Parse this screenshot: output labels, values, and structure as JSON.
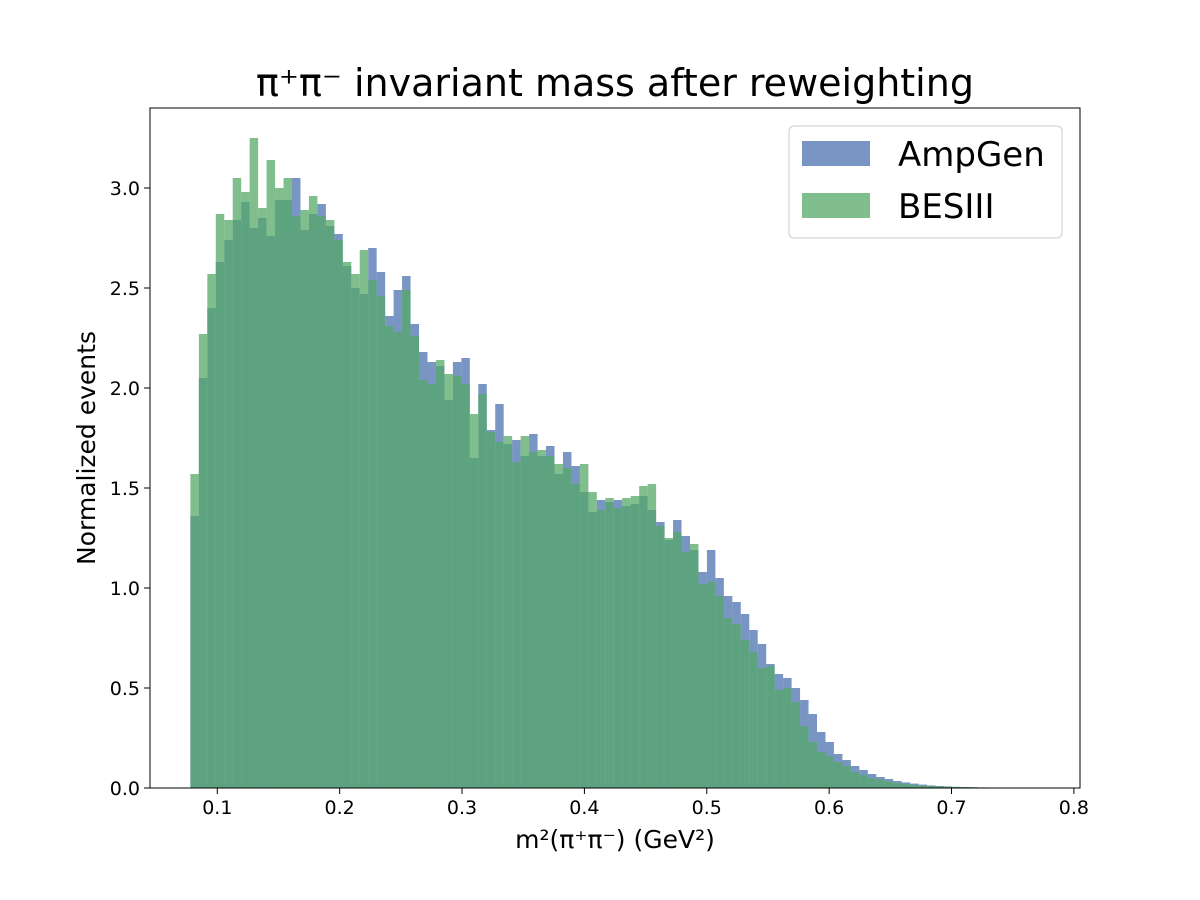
{
  "colors": {
    "AmpGen": "#4c72b0",
    "BESIII": "#55a868"
  },
  "chart_data": {
    "type": "histogram",
    "title": "π⁺π⁻ invariant mass after reweighting",
    "xlabel": "m²(π⁺π⁻) (GeV²)",
    "ylabel": "Normalized events",
    "xlim": [
      0.045,
      0.805
    ],
    "ylim": [
      0.0,
      3.4
    ],
    "x_ticks": [
      0.1,
      0.2,
      0.3,
      0.4,
      0.5,
      0.6,
      0.7,
      0.8
    ],
    "x_tick_labels": [
      "0.1",
      "0.2",
      "0.3",
      "0.4",
      "0.5",
      "0.6",
      "0.7",
      "0.8"
    ],
    "y_ticks": [
      0.0,
      0.5,
      1.0,
      1.5,
      2.0,
      2.5,
      3.0
    ],
    "y_tick_labels": [
      "0.0",
      "0.5",
      "1.0",
      "1.5",
      "2.0",
      "2.5",
      "3.0"
    ],
    "legend_position": "top-right",
    "grid": false,
    "bin_range": [
      0.078,
      0.77
    ],
    "bin_count": 100,
    "series": [
      {
        "name": "AmpGen",
        "opacity": 0.75,
        "values": [
          1.36,
          2.05,
          2.4,
          2.63,
          2.74,
          2.84,
          2.93,
          2.8,
          2.85,
          2.76,
          2.94,
          2.94,
          3.05,
          2.79,
          2.87,
          2.92,
          2.81,
          2.77,
          2.61,
          2.5,
          2.47,
          2.7,
          2.58,
          2.36,
          2.49,
          2.56,
          2.32,
          2.18,
          2.13,
          2.11,
          1.94,
          2.13,
          2.15,
          1.65,
          2.02,
          1.79,
          1.92,
          1.72,
          1.74,
          1.66,
          1.77,
          1.66,
          1.71,
          1.57,
          1.68,
          1.61,
          1.48,
          1.38,
          1.44,
          1.43,
          1.44,
          1.41,
          1.42,
          1.46,
          1.39,
          1.33,
          1.24,
          1.34,
          1.26,
          1.19,
          1.08,
          1.19,
          1.05,
          0.96,
          0.93,
          0.87,
          0.79,
          0.72,
          0.62,
          0.57,
          0.55,
          0.5,
          0.44,
          0.37,
          0.28,
          0.23,
          0.17,
          0.14,
          0.11,
          0.09,
          0.07,
          0.055,
          0.045,
          0.035,
          0.028,
          0.022,
          0.017,
          0.013,
          0.01,
          0.008,
          0.006,
          0.005,
          0.004,
          0.003,
          0.0025,
          0.002,
          0.0015,
          0.001,
          0.001,
          0.0005
        ]
      },
      {
        "name": "BESIII",
        "opacity": 0.75,
        "values": [
          1.57,
          2.27,
          2.57,
          2.87,
          2.84,
          3.05,
          2.98,
          3.25,
          2.9,
          3.14,
          3.0,
          3.05,
          2.86,
          2.89,
          2.96,
          2.86,
          2.84,
          2.74,
          2.63,
          2.57,
          2.69,
          2.54,
          2.46,
          2.31,
          2.28,
          2.49,
          2.26,
          2.04,
          2.02,
          2.14,
          2.07,
          2.06,
          2.02,
          1.87,
          1.97,
          1.78,
          1.73,
          1.76,
          1.63,
          1.76,
          1.68,
          1.69,
          1.66,
          1.62,
          1.6,
          1.52,
          1.62,
          1.48,
          1.39,
          1.45,
          1.4,
          1.45,
          1.46,
          1.51,
          1.52,
          1.31,
          1.25,
          1.28,
          1.18,
          1.22,
          1.02,
          1.03,
          0.96,
          0.85,
          0.82,
          0.74,
          0.68,
          0.6,
          0.61,
          0.49,
          0.5,
          0.43,
          0.31,
          0.23,
          0.18,
          0.16,
          0.13,
          0.11,
          0.08,
          0.065,
          0.05,
          0.042,
          0.033,
          0.026,
          0.02,
          0.016,
          0.012,
          0.01,
          0.008,
          0.006,
          0.005,
          0.004,
          0.003,
          0.0025,
          0.002,
          0.0015,
          0.001,
          0.001,
          0.0008,
          0.0005
        ]
      }
    ]
  }
}
